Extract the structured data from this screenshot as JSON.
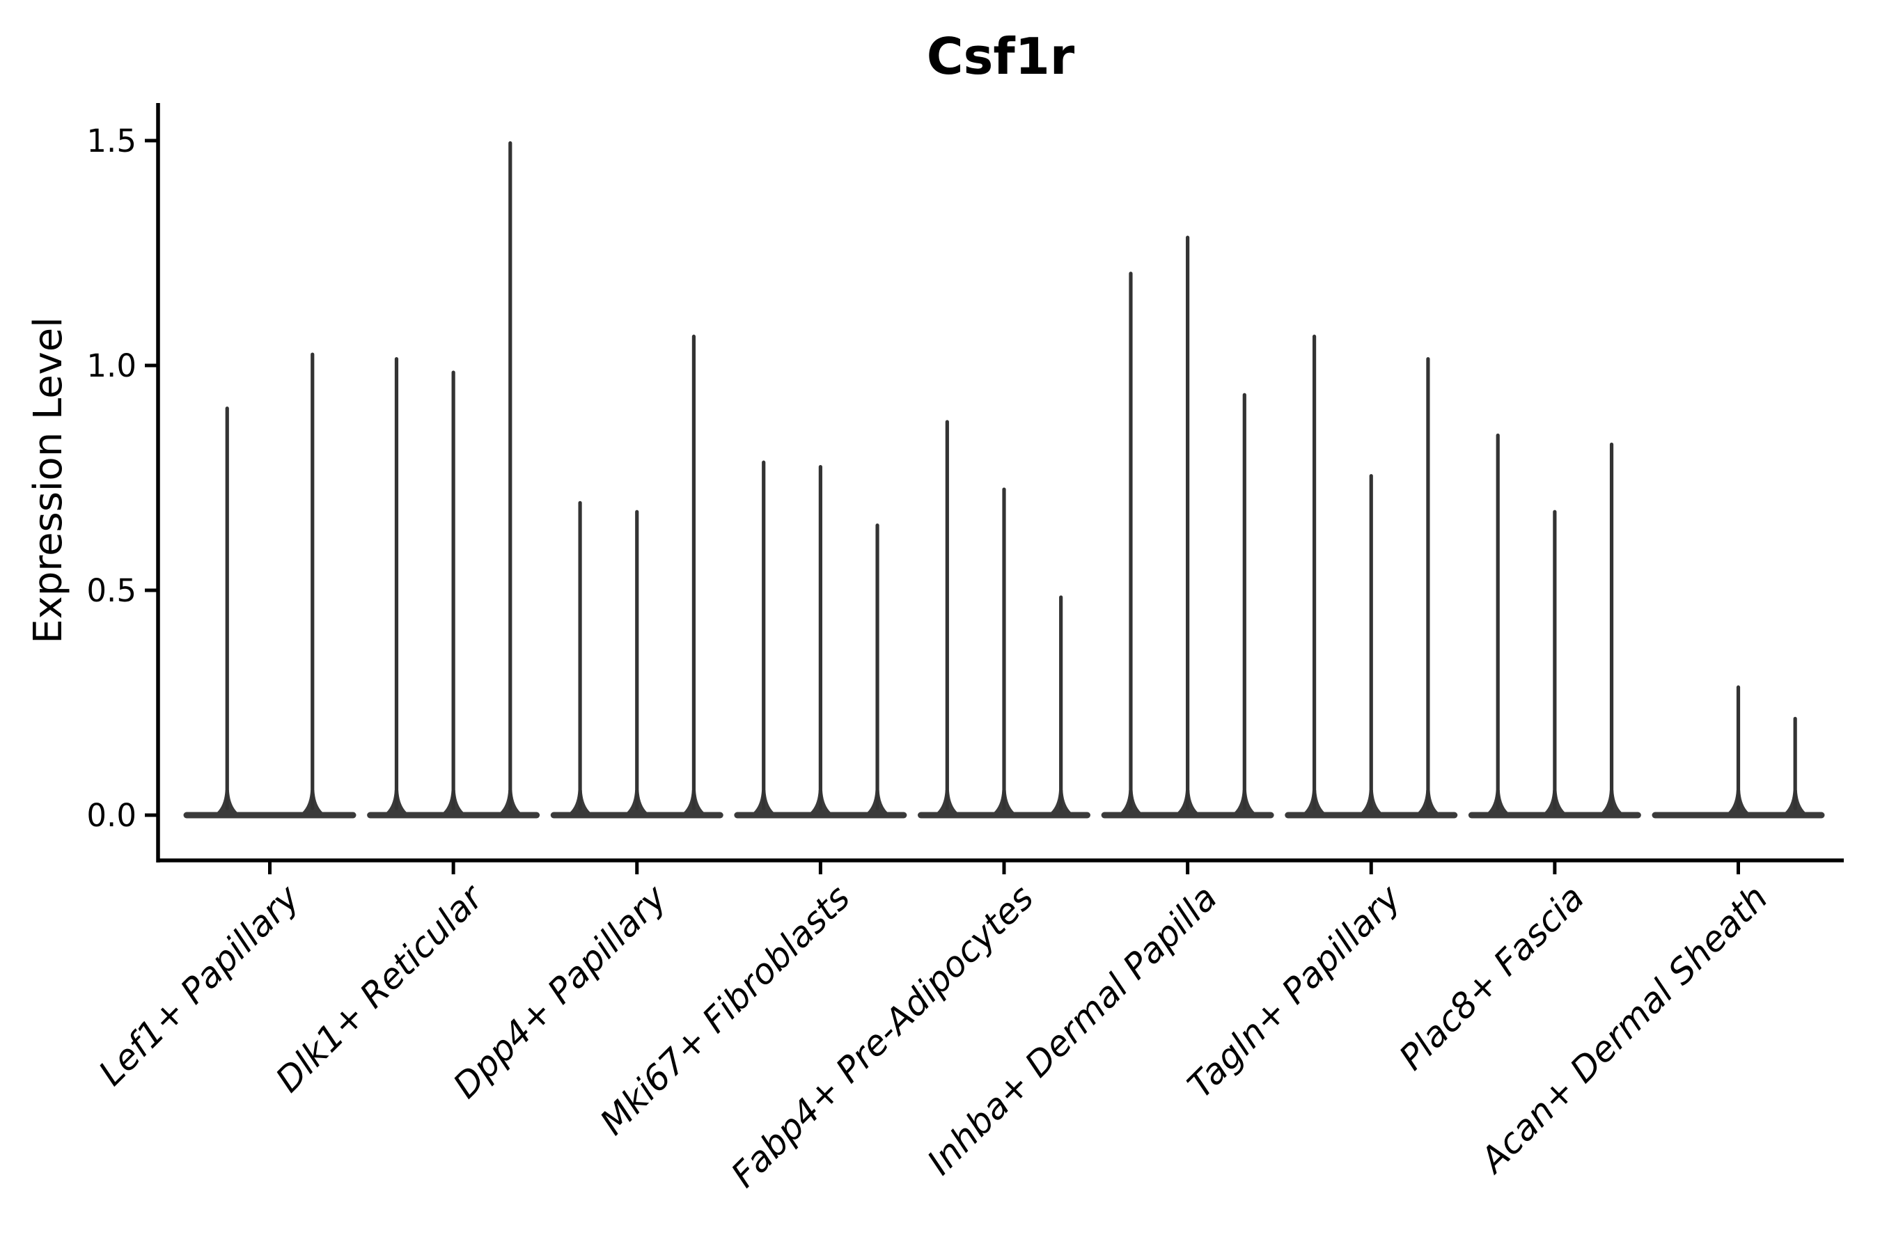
{
  "figure": {
    "background": "#ffffff"
  },
  "chart_data": {
    "type": "violin",
    "title": "Csf1r",
    "xlabel": "",
    "ylabel": "Expression Level",
    "ylim": [
      -0.1,
      1.58
    ],
    "grid": false,
    "legend": "none",
    "spines": [
      "left",
      "bottom"
    ],
    "yticks": [
      {
        "value": 0.0,
        "label": "0.0"
      },
      {
        "value": 0.5,
        "label": "0.5"
      },
      {
        "value": 1.0,
        "label": "1.0"
      },
      {
        "value": 1.5,
        "label": "1.5"
      }
    ],
    "categories": [
      "Lef1+ Papillary",
      "Dlk1+ Reticular",
      "Dpp4+ Papillary",
      "Mki67+ Fibroblasts",
      "Fabp4+ Pre-Adipocytes",
      "Inhba+ Dermal Papilla",
      "Tagln+ Papillary",
      "Plac8+ Fascia",
      "Acan+ Dermal Sheath"
    ],
    "groups": [
      {
        "category": "Lef1+ Papillary",
        "violin_max_values": [
          0.91,
          1.03
        ]
      },
      {
        "category": "Dlk1+ Reticular",
        "violin_max_values": [
          1.02,
          0.99,
          1.5
        ]
      },
      {
        "category": "Dpp4+ Papillary",
        "violin_max_values": [
          0.7,
          0.68,
          1.07
        ]
      },
      {
        "category": "Mki67+ Fibroblasts",
        "violin_max_values": [
          0.79,
          0.78,
          0.65
        ]
      },
      {
        "category": "Fabp4+ Pre-Adipocytes",
        "violin_max_values": [
          0.88,
          0.73,
          0.49
        ]
      },
      {
        "category": "Inhba+ Dermal Papilla",
        "violin_max_values": [
          1.21,
          1.29,
          0.94
        ]
      },
      {
        "category": "Tagln+ Papillary",
        "violin_max_values": [
          1.07,
          0.76,
          1.02
        ]
      },
      {
        "category": "Plac8+ Fascia",
        "violin_max_values": [
          0.85,
          0.68,
          0.83
        ]
      },
      {
        "category": "Acan+ Dermal Sheath",
        "violin_max_values": [
          0.0,
          0.29,
          0.22
        ]
      }
    ],
    "colors": {
      "violin": "#333333",
      "violin_base": "#3a3a3a",
      "axis": "#000000",
      "text": "#000000",
      "background": "#ffffff"
    }
  }
}
